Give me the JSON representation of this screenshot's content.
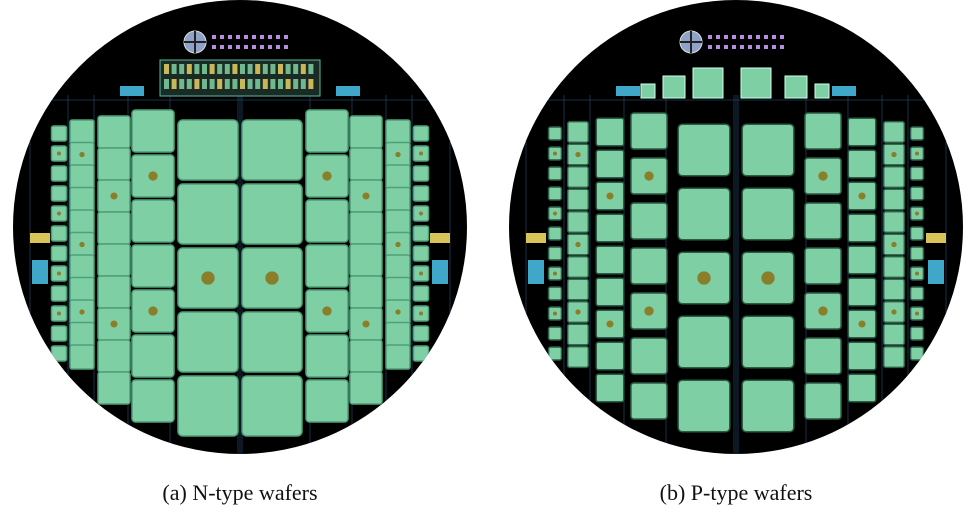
{
  "figure": {
    "panels": [
      {
        "caption": "(a) N-type wafers"
      },
      {
        "caption": "(b) P-type wafers"
      }
    ]
  }
}
